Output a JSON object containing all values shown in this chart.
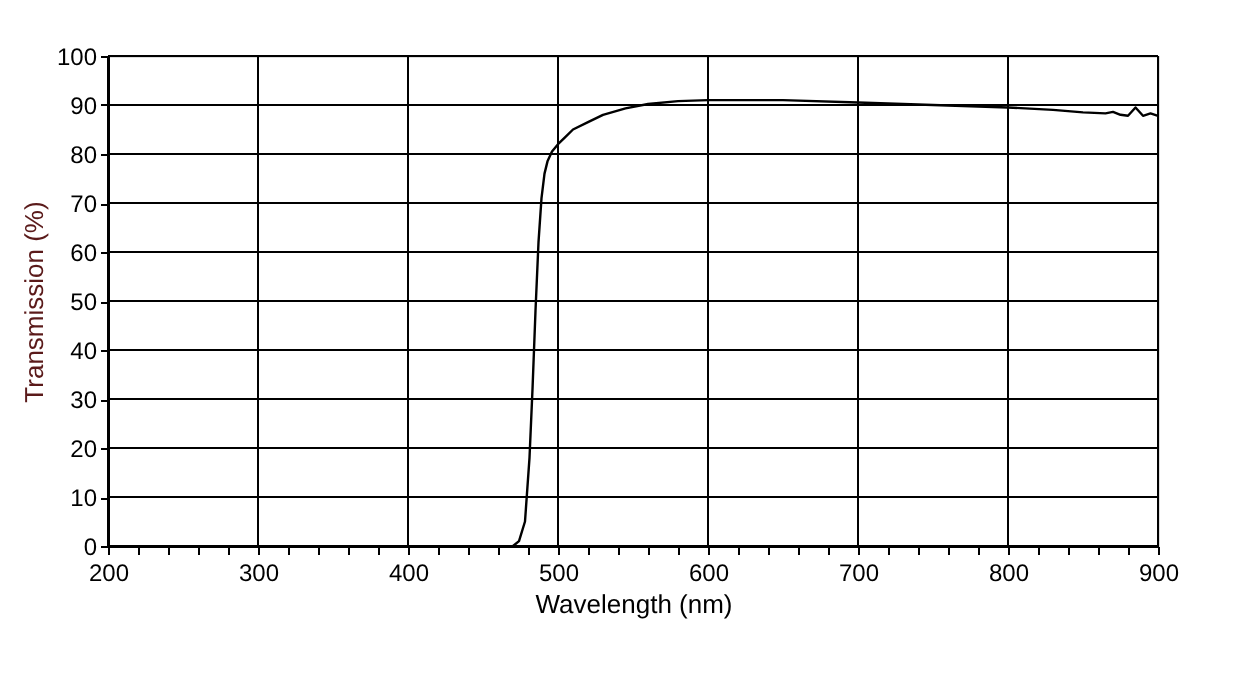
{
  "chart_data": {
    "type": "line",
    "xlabel": "Wavelength (nm)",
    "ylabel": "Transmission (%)",
    "x": [
      470,
      474,
      478,
      481,
      483,
      485,
      487,
      489,
      491,
      493,
      496,
      500,
      505,
      510,
      520,
      530,
      545,
      560,
      580,
      600,
      650,
      700,
      750,
      800,
      830,
      850,
      865,
      870,
      875,
      880,
      885,
      890,
      895,
      900
    ],
    "series": [
      {
        "color": "#000000",
        "values": [
          0,
          1,
          5,
          18,
          32,
          48,
          62,
          71,
          76,
          78.5,
          80.5,
          82,
          83.5,
          85,
          86.5,
          88,
          89.3,
          90.2,
          90.8,
          91,
          91,
          90.5,
          90,
          89.5,
          89,
          88.5,
          88.3,
          88.6,
          88,
          87.8,
          89.5,
          87.8,
          88.3,
          87.8
        ]
      }
    ],
    "xlim": [
      200,
      900
    ],
    "ylim": [
      0,
      100
    ],
    "xticks": [
      200,
      {
        "value": 220,
        "label": null
      },
      {
        "value": 240,
        "label": null
      },
      {
        "value": 260,
        "label": null
      },
      {
        "value": 280,
        "label": null
      },
      300,
      {
        "value": 320,
        "label": null
      },
      {
        "value": 340,
        "label": null
      },
      {
        "value": 360,
        "label": null
      },
      {
        "value": 380,
        "label": null
      },
      400,
      {
        "value": 420,
        "label": null
      },
      {
        "value": 440,
        "label": null
      },
      {
        "value": 460,
        "label": null
      },
      {
        "value": 480,
        "label": null
      },
      500,
      {
        "value": 520,
        "label": null
      },
      {
        "value": 540,
        "label": null
      },
      {
        "value": 560,
        "label": null
      },
      {
        "value": 580,
        "label": null
      },
      600,
      {
        "value": 620,
        "label": null
      },
      {
        "value": 640,
        "label": null
      },
      {
        "value": 660,
        "label": null
      },
      {
        "value": 680,
        "label": null
      },
      700,
      {
        "value": 720,
        "label": null
      },
      {
        "value": 740,
        "label": null
      },
      {
        "value": 760,
        "label": null
      },
      {
        "value": 780,
        "label": null
      },
      800,
      {
        "value": 820,
        "label": null
      },
      {
        "value": 840,
        "label": null
      },
      {
        "value": 860,
        "label": null
      },
      {
        "value": 880,
        "label": null
      },
      900
    ],
    "yticks": [
      0,
      10,
      20,
      30,
      40,
      50,
      60,
      70,
      80,
      90,
      100
    ],
    "grid": true,
    "line_style": "solid",
    "marker": "none"
  }
}
